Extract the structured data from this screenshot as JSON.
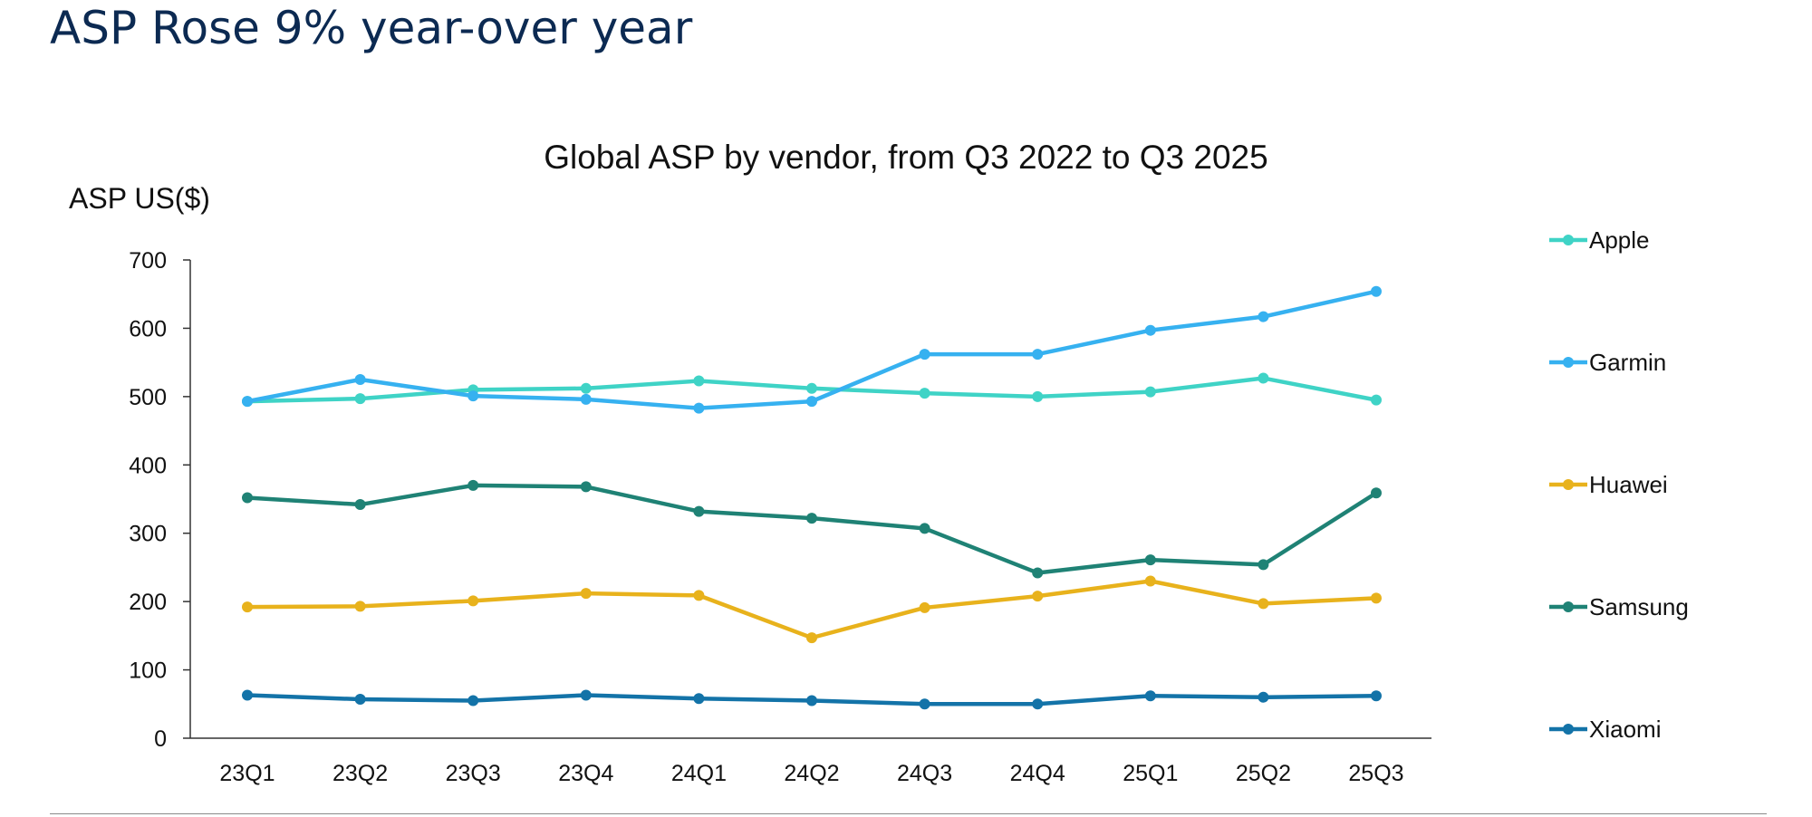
{
  "slide": {
    "title": "ASP Rose 9% year-over year"
  },
  "chart_data": {
    "type": "line",
    "title": "Global ASP by vendor, from Q3 2022 to Q3 2025",
    "xlabel": "",
    "ylabel": "ASP US($)",
    "ylim": [
      0,
      700
    ],
    "yticks": [
      0,
      100,
      200,
      300,
      400,
      500,
      600,
      700
    ],
    "categories": [
      "23Q1",
      "23Q2",
      "23Q3",
      "23Q4",
      "24Q1",
      "24Q2",
      "24Q3",
      "24Q4",
      "25Q1",
      "25Q2",
      "25Q3"
    ],
    "grid": false,
    "legend_position": "right",
    "series": [
      {
        "name": "Apple",
        "color": "#3fd3c6",
        "values": [
          493,
          497,
          510,
          512,
          523,
          512,
          505,
          500,
          507,
          527,
          495
        ]
      },
      {
        "name": "Garmin",
        "color": "#36b1f0",
        "values": [
          493,
          525,
          501,
          496,
          483,
          493,
          562,
          562,
          597,
          617,
          654
        ]
      },
      {
        "name": "Huawei",
        "color": "#e8b21c",
        "values": [
          192,
          193,
          201,
          212,
          209,
          147,
          191,
          208,
          230,
          197,
          205
        ]
      },
      {
        "name": "Samsung",
        "color": "#1f8275",
        "values": [
          352,
          342,
          370,
          368,
          332,
          322,
          307,
          242,
          261,
          254,
          359
        ]
      },
      {
        "name": "Xiaomi",
        "color": "#1373a8",
        "values": [
          63,
          57,
          55,
          63,
          58,
          55,
          50,
          50,
          62,
          60,
          62
        ]
      }
    ]
  }
}
